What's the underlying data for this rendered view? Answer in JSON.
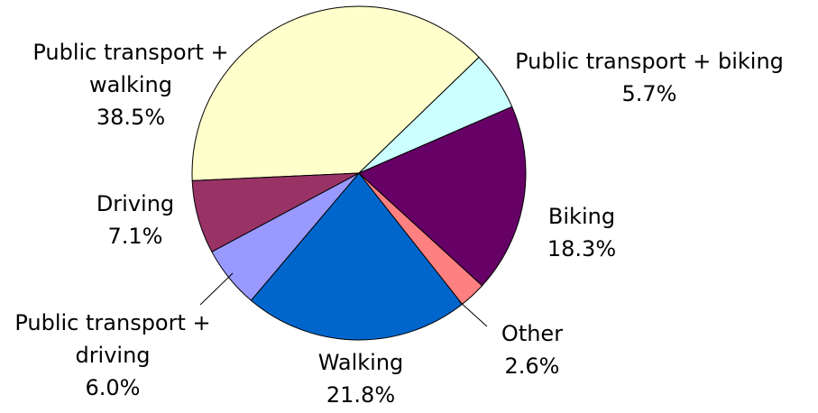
{
  "chart_data": {
    "type": "pie",
    "categories": [
      "Public transport + biking",
      "Biking",
      "Other",
      "Walking",
      "Public transport + driving",
      "Driving",
      "Public transport + walking"
    ],
    "values": [
      5.7,
      18.3,
      2.6,
      21.8,
      6.0,
      7.1,
      38.5
    ],
    "value_labels": [
      "5.7%",
      "18.3%",
      "2.6%",
      "21.8%",
      "6.0%",
      "7.1%",
      "38.5%"
    ],
    "colors": [
      "#ccffff",
      "#660066",
      "#ff8080",
      "#0066cc",
      "#9999ff",
      "#993366",
      "#ffffcc"
    ]
  }
}
